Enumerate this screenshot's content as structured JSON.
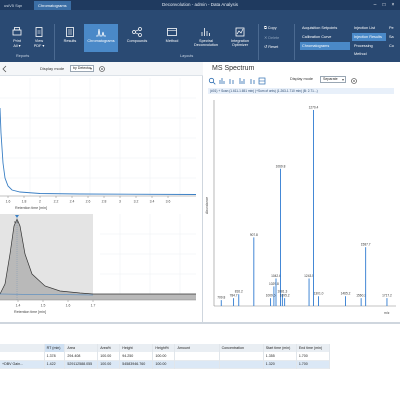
{
  "window": {
    "title": "Deconvolution - admin - Data Analysis",
    "tabs": [
      {
        "label": "usiV5 Sqn"
      },
      {
        "label": "Chromatograms"
      }
    ]
  },
  "ribbon": {
    "buttons": [
      {
        "label": "Print",
        "sub": "All ▾"
      },
      {
        "label": "View",
        "sub": "PDF ▾"
      },
      {
        "label": "Results"
      },
      {
        "label": "Chromatograms"
      },
      {
        "label": "Compounds"
      },
      {
        "label": "Method"
      },
      {
        "label": "Spectral",
        "sub": "Deconvolution"
      },
      {
        "label": "Integration",
        "sub": "Optimizer"
      }
    ],
    "groups": {
      "reports": "Reports",
      "layouts": "Layouts"
    },
    "commands": {
      "copy": "Copy",
      "delete": "Delete",
      "reset": "Reset"
    },
    "list": {
      "items": [
        "Acquisition Setpoints",
        "Calibration Curve",
        "Chromatograms",
        "Injection List",
        "Injection Results",
        "Processing Method",
        "Pe",
        "Sa",
        "Co"
      ]
    }
  },
  "chrom": {
    "display_mode_label": "Display mode",
    "display_mode_value": "by Detector",
    "top_xlabel": "Retention time [min]",
    "top_ticks": [
      "1.6",
      "1.8",
      "2",
      "2.2",
      "2.4",
      "2.6",
      "2.8",
      "3",
      "3.2",
      "3.4",
      "3.6"
    ],
    "bottom_xlabel": "Retention time [min]",
    "bottom_ticks": [
      "1.4",
      "1.5",
      "1.6",
      "1.7"
    ],
    "peak_label": "1.4"
  },
  "ms": {
    "title": "MS Spectrum",
    "display_mode_label": "Display mode",
    "display_mode_value": "Separate",
    "info": "(#01) + Scan (1.611-1.651 min) (+Sum of cnts) (1.263-1.710 min) (B: 2.71...)",
    "ylabel": "Abundance",
    "xlabel": "m/z"
  },
  "chart_data": {
    "type": "bar",
    "title": "MS Spectrum",
    "xlabel": "m/z",
    "ylabel": "Abundance",
    "points": [
      {
        "x": 709.8,
        "y": 0.03,
        "label": "709.8"
      },
      {
        "x": 784.7,
        "y": 0.04,
        "label": "784.7"
      },
      {
        "x": 816.2,
        "y": 0.06,
        "label": "816.2"
      },
      {
        "x": 907.8,
        "y": 0.35,
        "label": "907.8"
      },
      {
        "x": 1009.6,
        "y": 0.04,
        "label": "1009.6"
      },
      {
        "x": 1029.8,
        "y": 0.1,
        "label": "1029.8"
      },
      {
        "x": 1042.6,
        "y": 0.14,
        "label": "1042.6"
      },
      {
        "x": 1069.8,
        "y": 0.7,
        "label": "1069.8"
      },
      {
        "x": 1081.3,
        "y": 0.06,
        "label": "1081.3"
      },
      {
        "x": 1095.2,
        "y": 0.04,
        "label": "1095.2"
      },
      {
        "x": 1243.5,
        "y": 0.14,
        "label": "1243.5"
      },
      {
        "x": 1270.4,
        "y": 1.0,
        "label": "1270.4"
      },
      {
        "x": 1301.0,
        "y": 0.05,
        "label": "1301.0"
      },
      {
        "x": 1465.2,
        "y": 0.05,
        "label": "1465.2"
      },
      {
        "x": 1560.2,
        "y": 0.04,
        "label": "1560.2"
      },
      {
        "x": 1587.7,
        "y": 0.3,
        "label": "1587.7"
      },
      {
        "x": 1717.2,
        "y": 0.04,
        "label": "1717.2"
      }
    ]
  },
  "table": {
    "headers": [
      "",
      "RT (min)",
      "Area",
      "Area%",
      "Height",
      "Height%",
      "Amount",
      "Concentration",
      "Start time (min)",
      "End time (min)"
    ],
    "rows": [
      {
        "name": "",
        "rt": "1.378",
        "area": "294.408",
        "area_pct": "100.00",
        "height": "94.250",
        "height_pct": "100.00",
        "amount": "",
        "conc": "",
        "start": "1.355",
        "end": "1.700"
      },
      {
        "name": "+DBV Gain...",
        "rt": "1.422",
        "area": "529112588.055",
        "area_pct": "100.00",
        "height": "54583946.760",
        "height_pct": "100.00",
        "amount": "",
        "conc": "",
        "start": "1.320",
        "end": "1.700"
      }
    ]
  }
}
